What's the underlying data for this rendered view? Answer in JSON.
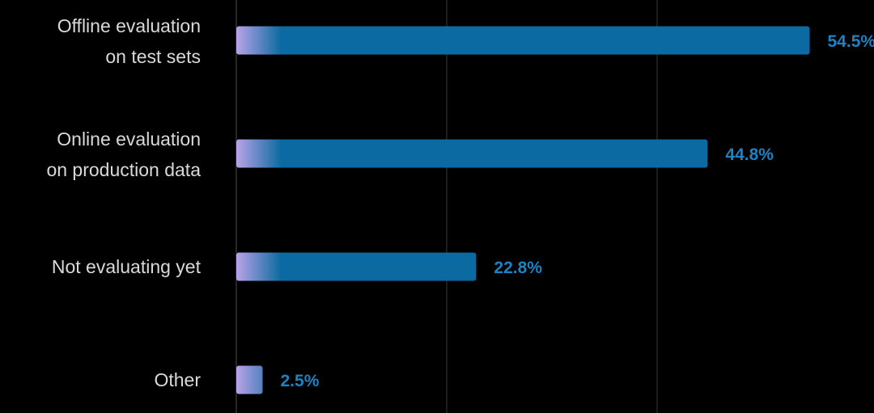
{
  "chart_data": {
    "type": "bar",
    "orientation": "horizontal",
    "categories": [
      [
        "Offline evaluation",
        "on test sets"
      ],
      [
        "Online evaluation",
        "on production data"
      ],
      [
        "Not evaluating yet"
      ],
      [
        "Other"
      ]
    ],
    "values": [
      54.5,
      44.8,
      22.8,
      2.5
    ],
    "value_labels": [
      "54.5%",
      "44.8%",
      "22.8%",
      "2.5%"
    ],
    "xlim": [
      0,
      60
    ],
    "grid": true,
    "colors": {
      "bar": "#0a6aa1",
      "bar_start": "#b9a3e8",
      "label": "#1b82c4",
      "text": "#d9d9d9",
      "grid": "#1c1c1c",
      "background": "#000000"
    }
  }
}
